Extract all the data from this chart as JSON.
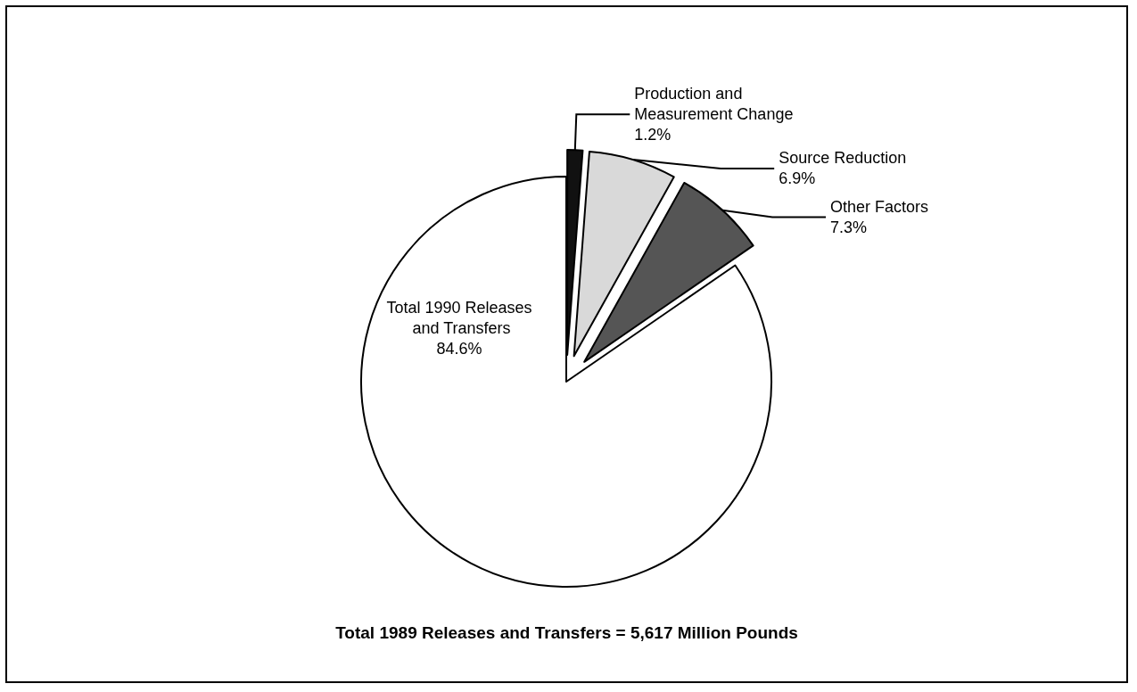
{
  "chart_data": {
    "type": "pie",
    "title": "Total 1989 Releases and Transfers = 5,617 Million Pounds",
    "categories": [
      "Production and Measurement Change",
      "Source Reduction",
      "Other Factors",
      "Total 1990 Releases and Transfers"
    ],
    "values": [
      1.2,
      6.9,
      7.3,
      84.6
    ],
    "value_labels": [
      "1.2%",
      "6.9%",
      "7.3%",
      "84.6%"
    ],
    "colors": [
      "#111111",
      "#d9d9d9",
      "#555555",
      "#ffffff"
    ],
    "legend": false
  }
}
